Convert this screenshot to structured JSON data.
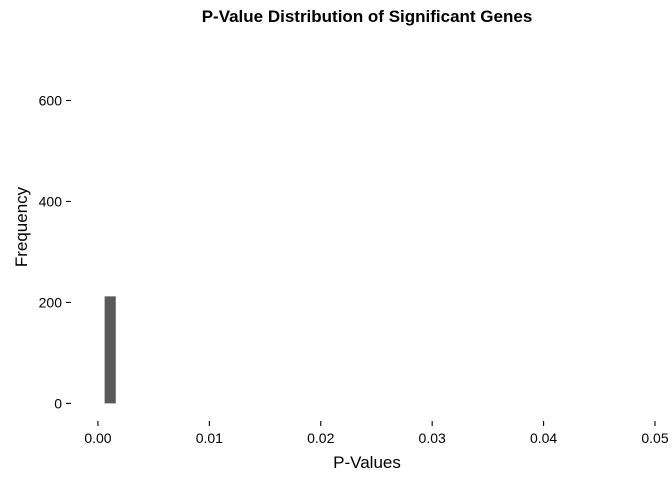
{
  "chart_data": {
    "type": "bar",
    "title": "P-Value Distribution of Significant Genes",
    "xlabel": "P-Values",
    "ylabel": "Frequency",
    "xlim": [
      -0.0017,
      0.05
    ],
    "ylim": [
      -25,
      700
    ],
    "x_ticks": [
      0.0,
      0.01,
      0.02,
      0.03,
      0.04,
      0.05
    ],
    "x_tick_labels": [
      "0.00",
      "0.01",
      "0.02",
      "0.03",
      "0.04",
      "0.05"
    ],
    "y_ticks": [
      0,
      200,
      400,
      600
    ],
    "y_tick_labels": [
      "0",
      "200",
      "400",
      "600"
    ],
    "grid": false,
    "bins": [
      {
        "x_start": 0.0006,
        "x_end": 0.0016,
        "value": 212
      }
    ],
    "bar_color": "#595959"
  }
}
